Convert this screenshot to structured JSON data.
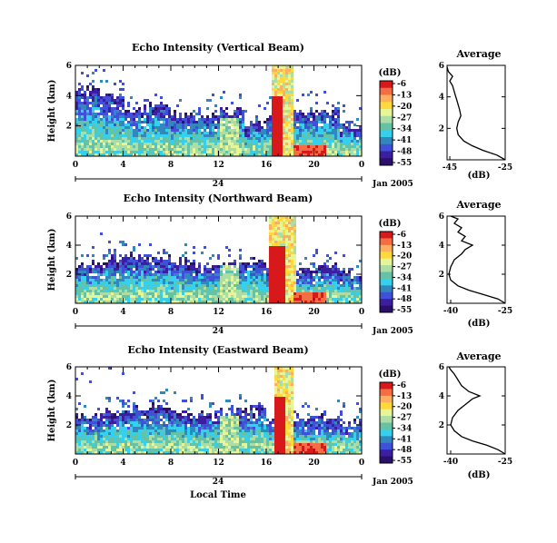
{
  "chart_data": [
    {
      "type": "heatmap",
      "title": "Echo Intensity (Vertical Beam)",
      "ylabel": "Height (km)",
      "xlim": [
        0,
        24
      ],
      "ylim": [
        0,
        6
      ],
      "xticks": [
        "0",
        "4",
        "8",
        "12",
        "16",
        "20",
        "0"
      ],
      "yticks": [
        "2",
        "4",
        "6"
      ],
      "date_tick": "24",
      "date_label": "Jan 2005",
      "grid": false,
      "colorbar": {
        "unit": "(dB)",
        "levels": [
          "-6",
          "-13",
          "-20",
          "-27",
          "-34",
          "-41",
          "-48",
          "-55"
        ],
        "colors": [
          "#d7191c",
          "#f46d43",
          "#fdae61",
          "#ffd83a",
          "#e6f598",
          "#abdda4",
          "#66c2a5",
          "#35d0ee",
          "#3288bd",
          "#4050d8",
          "#3b1fa0",
          "#2a0f6b"
        ]
      },
      "cloud_top_km": [
        4.3,
        3.8,
        3.0,
        3.2,
        2.7,
        2.6,
        2.9,
        2.1,
        2.6,
        2.8,
        2.9,
        1.9
      ],
      "rain_band_hours": [
        16.4,
        18.1
      ]
    },
    {
      "type": "heatmap",
      "title": "Echo Intensity (Northward Beam)",
      "ylabel": "Height (km)",
      "xlim": [
        0,
        24
      ],
      "ylim": [
        0,
        6
      ],
      "xticks": [
        "0",
        "4",
        "8",
        "12",
        "16",
        "20",
        "0"
      ],
      "yticks": [
        "2",
        "4",
        "6"
      ],
      "date_tick": "24",
      "date_label": "Jan 2005",
      "grid": false,
      "colorbar": {
        "unit": "(dB)",
        "levels": [
          "-6",
          "-13",
          "-20",
          "-27",
          "-34",
          "-41",
          "-48",
          "-55"
        ],
        "colors": [
          "#d7191c",
          "#f46d43",
          "#fdae61",
          "#ffd83a",
          "#e6f598",
          "#abdda4",
          "#66c2a5",
          "#35d0ee",
          "#3288bd",
          "#4050d8",
          "#3b1fa0",
          "#2a0f6b"
        ]
      },
      "cloud_top_km": [
        2.6,
        2.9,
        3.1,
        3.0,
        2.8,
        2.5,
        2.7,
        2.9,
        2.4,
        2.3,
        2.5,
        2.0
      ],
      "rain_band_hours": [
        16.2,
        18.4
      ]
    },
    {
      "type": "heatmap",
      "title": "Echo Intensity (Eastward Beam)",
      "ylabel": "Height (km)",
      "xlabel": "Local Time",
      "xlim": [
        0,
        24
      ],
      "ylim": [
        0,
        6
      ],
      "xticks": [
        "0",
        "4",
        "8",
        "12",
        "16",
        "20",
        "0"
      ],
      "yticks": [
        "2",
        "4",
        "6"
      ],
      "date_tick": "24",
      "date_label": "Jan 2005",
      "grid": false,
      "colorbar": {
        "unit": "(dB)",
        "levels": [
          "-6",
          "-13",
          "-20",
          "-27",
          "-34",
          "-41",
          "-48",
          "-55"
        ],
        "colors": [
          "#d7191c",
          "#f46d43",
          "#fdae61",
          "#ffd83a",
          "#e6f598",
          "#abdda4",
          "#66c2a5",
          "#35d0ee",
          "#3288bd",
          "#4050d8",
          "#3b1fa0",
          "#2a0f6b"
        ]
      },
      "cloud_top_km": [
        2.5,
        2.8,
        3.0,
        3.2,
        2.9,
        2.6,
        2.8,
        3.0,
        2.6,
        2.5,
        2.4,
        2.1
      ],
      "rain_band_hours": [
        16.5,
        18.1
      ]
    },
    {
      "type": "line",
      "title": "Average",
      "xlabel": "(dB)",
      "xlim": [
        -46,
        -25
      ],
      "ylim": [
        0,
        6
      ],
      "xticks": [
        "-45",
        "-25"
      ],
      "yticks": [
        "2",
        "4",
        "6"
      ],
      "series": [
        {
          "x": [
            -25,
            -28,
            -33,
            -37,
            -40,
            -42,
            -42.5,
            -42,
            -41,
            -41.5,
            -42,
            -42.5,
            -43,
            -43.5,
            -44,
            -45,
            -44,
            -45.5,
            -46
          ],
          "y": [
            0,
            0.3,
            0.6,
            0.9,
            1.2,
            1.6,
            2.0,
            2.4,
            2.8,
            3.2,
            3.5,
            3.8,
            4.1,
            4.4,
            4.7,
            5.0,
            5.3,
            5.6,
            5.9
          ]
        }
      ]
    },
    {
      "type": "line",
      "title": "Average",
      "xlabel": "(dB)",
      "xlim": [
        -41,
        -25
      ],
      "ylim": [
        0,
        6
      ],
      "xticks": [
        "-40",
        "-25"
      ],
      "yticks": [
        "2",
        "4",
        "6"
      ],
      "series": [
        {
          "x": [
            -25,
            -27,
            -31,
            -35,
            -38,
            -40,
            -40.5,
            -40,
            -39,
            -37,
            -36,
            -34,
            -37,
            -36,
            -38,
            -37,
            -39,
            -38,
            -40,
            -40
          ],
          "y": [
            0,
            0.3,
            0.6,
            0.9,
            1.2,
            1.6,
            2.0,
            2.5,
            3.0,
            3.4,
            3.7,
            4.0,
            4.3,
            4.6,
            4.9,
            5.2,
            5.5,
            5.8,
            6.0,
            6.0
          ]
        }
      ]
    },
    {
      "type": "line",
      "title": "Average",
      "xlabel": "(dB)",
      "xlim": [
        -41,
        -25
      ],
      "ylim": [
        0,
        6
      ],
      "xticks": [
        "-40",
        "-25"
      ],
      "yticks": [
        "2",
        "4",
        "6"
      ],
      "series": [
        {
          "x": [
            -25,
            -27,
            -30,
            -34,
            -37,
            -39,
            -40,
            -39.5,
            -38,
            -36,
            -34,
            -32,
            -35,
            -37,
            -38,
            -39,
            -40,
            -40.5
          ],
          "y": [
            0,
            0.3,
            0.6,
            0.9,
            1.2,
            1.6,
            2.0,
            2.5,
            3.0,
            3.4,
            3.8,
            4.0,
            4.3,
            4.7,
            5.1,
            5.5,
            5.8,
            6.0
          ]
        }
      ]
    }
  ]
}
